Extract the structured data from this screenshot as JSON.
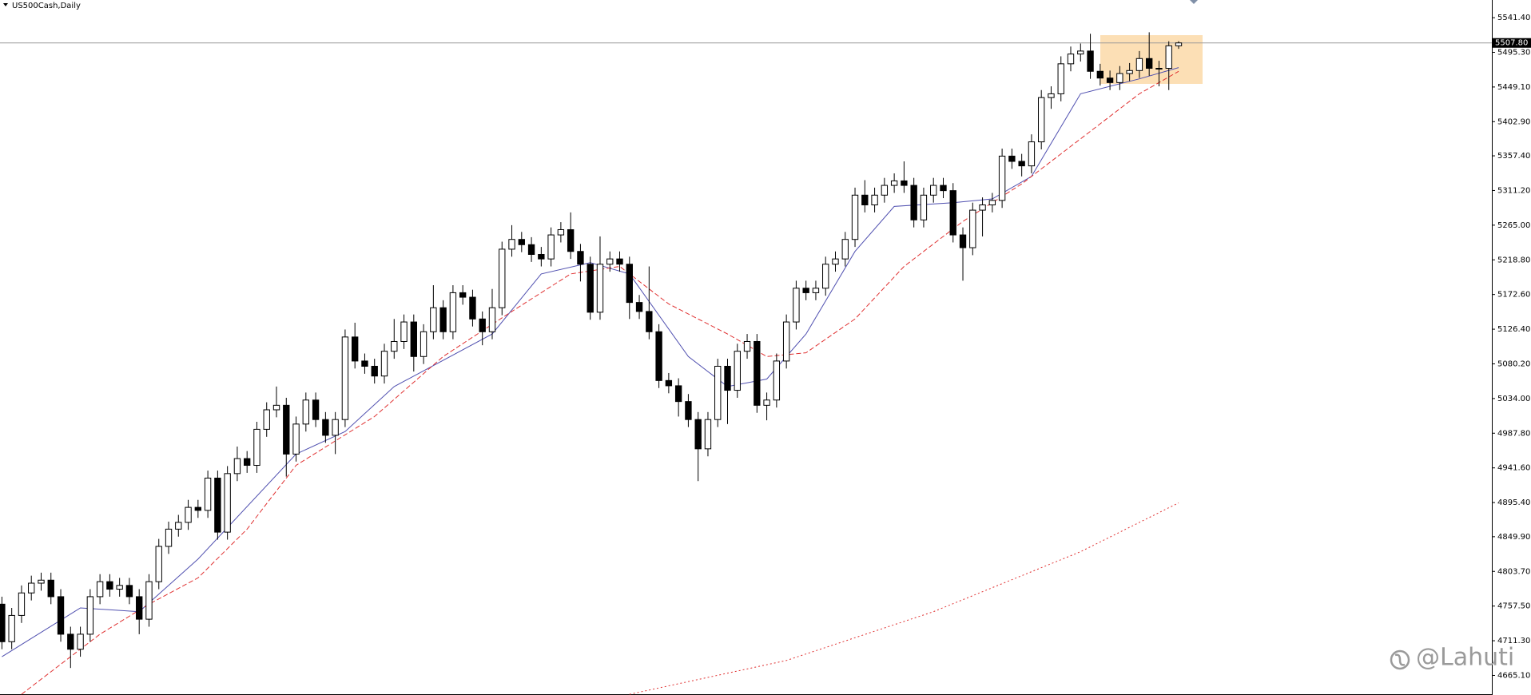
{
  "chart_data": {
    "type": "candlestick",
    "title": "US500Cash,Daily",
    "watermark": "@Lahuti",
    "open": [
      4760,
      4710,
      4745,
      4775,
      4788,
      4792,
      4770,
      4720,
      4700,
      4720,
      4770,
      4790,
      4780,
      4785,
      4770,
      4740,
      4790,
      4837,
      4860,
      4869,
      4889,
      4885,
      4928,
      4856,
      4934,
      4954,
      4945,
      4993,
      5019,
      5025,
      4960,
      5000,
      5032,
      5006,
      4985,
      5006,
      5116,
      5084,
      5077,
      5064,
      5097,
      5110,
      5136,
      5090,
      5123,
      5155,
      5123,
      5175,
      5169,
      5140,
      5123,
      5155,
      5233,
      5246,
      5239,
      5226,
      5220,
      5252,
      5259,
      5230,
      5213,
      5149,
      5213,
      5220,
      5213,
      5162,
      5150,
      5123,
      5058,
      5051,
      5030,
      5006,
      4967,
      5006,
      5077,
      5045,
      5097,
      5110,
      5025,
      5032,
      5084,
      5136,
      5181,
      5175,
      5181,
      5213,
      5220,
      5246,
      5305,
      5292,
      5305,
      5318,
      5324,
      5318,
      5272,
      5305,
      5318,
      5311,
      5252,
      5235,
      5285,
      5292,
      5298,
      5357,
      5350,
      5344,
      5376,
      5435,
      5440,
      5480,
      5493,
      5497,
      5470,
      5461,
      5455,
      5467,
      5471,
      5487,
      5474,
      5474,
      5504
    ],
    "high": [
      4770,
      4755,
      4785,
      4798,
      4802,
      4802,
      4780,
      4730,
      4730,
      4780,
      4800,
      4800,
      4795,
      4795,
      4780,
      4800,
      4847,
      4870,
      4879,
      4899,
      4899,
      4938,
      4938,
      4944,
      4970,
      4964,
      5003,
      5029,
      5050,
      5035,
      5010,
      5042,
      5042,
      5016,
      5016,
      5126,
      5135,
      5094,
      5087,
      5107,
      5140,
      5146,
      5146,
      5133,
      5185,
      5165,
      5185,
      5185,
      5179,
      5150,
      5180,
      5243,
      5265,
      5256,
      5249,
      5236,
      5262,
      5269,
      5282,
      5240,
      5223,
      5250,
      5230,
      5230,
      5223,
      5172,
      5210,
      5133,
      5068,
      5061,
      5040,
      5016,
      5016,
      5087,
      5087,
      5107,
      5120,
      5120,
      5042,
      5094,
      5146,
      5191,
      5191,
      5191,
      5223,
      5230,
      5256,
      5315,
      5325,
      5315,
      5328,
      5334,
      5350,
      5328,
      5315,
      5328,
      5328,
      5321,
      5262,
      5295,
      5302,
      5308,
      5367,
      5367,
      5360,
      5386,
      5445,
      5450,
      5490,
      5503,
      5507,
      5520,
      5480,
      5471,
      5477,
      5481,
      5497,
      5522,
      5484,
      5510,
      5510
    ],
    "low": [
      4700,
      4700,
      4735,
      4765,
      4778,
      4760,
      4710,
      4675,
      4690,
      4710,
      4760,
      4770,
      4770,
      4760,
      4720,
      4730,
      4780,
      4827,
      4850,
      4859,
      4875,
      4875,
      4846,
      4846,
      4924,
      4935,
      4935,
      4983,
      5009,
      4930,
      4950,
      4990,
      4996,
      4975,
      4960,
      4996,
      5074,
      5067,
      5054,
      5054,
      5087,
      5100,
      5070,
      5080,
      5113,
      5113,
      5113,
      5159,
      5130,
      5105,
      5113,
      5145,
      5223,
      5229,
      5216,
      5210,
      5210,
      5242,
      5220,
      5190,
      5139,
      5139,
      5203,
      5203,
      5140,
      5140,
      5113,
      5048,
      5041,
      5010,
      4996,
      4924,
      4957,
      4996,
      5000,
      5035,
      5087,
      5015,
      5005,
      5022,
      5074,
      5126,
      5165,
      5165,
      5171,
      5203,
      5210,
      5236,
      5282,
      5282,
      5295,
      5308,
      5308,
      5262,
      5262,
      5295,
      5301,
      5242,
      5191,
      5225,
      5250,
      5282,
      5288,
      5340,
      5330,
      5334,
      5366,
      5420,
      5430,
      5470,
      5483,
      5460,
      5451,
      5445,
      5445,
      5457,
      5461,
      5464,
      5450,
      5445,
      5500
    ],
    "close": [
      4710,
      4745,
      4775,
      4788,
      4792,
      4770,
      4720,
      4700,
      4720,
      4770,
      4790,
      4780,
      4785,
      4770,
      4740,
      4790,
      4837,
      4860,
      4869,
      4889,
      4885,
      4928,
      4856,
      4934,
      4954,
      4945,
      4993,
      5019,
      5025,
      4960,
      5000,
      5032,
      5006,
      4985,
      5006,
      5116,
      5084,
      5077,
      5064,
      5097,
      5110,
      5136,
      5090,
      5123,
      5155,
      5123,
      5175,
      5169,
      5140,
      5123,
      5155,
      5233,
      5246,
      5239,
      5226,
      5220,
      5252,
      5259,
      5230,
      5213,
      5149,
      5213,
      5220,
      5213,
      5162,
      5150,
      5123,
      5058,
      5051,
      5030,
      5006,
      4967,
      5006,
      5077,
      5045,
      5097,
      5110,
      5025,
      5032,
      5084,
      5136,
      5181,
      5175,
      5181,
      5213,
      5220,
      5246,
      5305,
      5292,
      5305,
      5318,
      5324,
      5318,
      5272,
      5305,
      5318,
      5311,
      5252,
      5235,
      5285,
      5292,
      5298,
      5357,
      5350,
      5344,
      5376,
      5435,
      5440,
      5480,
      5493,
      5497,
      5470,
      5461,
      5455,
      5467,
      5471,
      5487,
      5474,
      5474,
      5504,
      5507.8
    ],
    "lines": [
      {
        "color": "#5050b0",
        "dash": "solid",
        "x": [
          0,
          8,
          14,
          20,
          30,
          35,
          40,
          50,
          55,
          60,
          64,
          70,
          74,
          78,
          82,
          87,
          91,
          97,
          101,
          105,
          110,
          116,
          120
        ],
        "values": [
          4690,
          4755,
          4750,
          4820,
          4960,
          4990,
          5050,
          5120,
          5200,
          5215,
          5200,
          5090,
          5050,
          5060,
          5120,
          5230,
          5290,
          5295,
          5300,
          5330,
          5440,
          5460,
          5475
        ]
      },
      {
        "color": "#e03030",
        "dash": "dashed",
        "x": [
          2,
          10,
          15,
          20,
          25,
          30,
          38,
          45,
          52,
          58,
          63,
          68,
          74,
          78,
          82,
          87,
          92,
          98,
          104,
          110,
          116,
          120
        ],
        "values": [
          4640,
          4720,
          4760,
          4795,
          4860,
          4945,
          5010,
          5090,
          5150,
          5200,
          5210,
          5160,
          5120,
          5090,
          5095,
          5140,
          5210,
          5270,
          5320,
          5380,
          5440,
          5470
        ]
      },
      {
        "color": "#e03030",
        "dash": "dotted",
        "x": [
          64,
          80,
          95,
          110,
          120
        ],
        "values": [
          4640,
          4685,
          4750,
          4830,
          4895
        ]
      }
    ],
    "current_price": {
      "value": 5507.8,
      "label": "5507.80"
    },
    "ylim": [
      4639,
      5565
    ],
    "yticks": [
      {
        "value": 5541.4,
        "label": "5541.40"
      },
      {
        "value": 5495.3,
        "label": "5495.30"
      },
      {
        "value": 5449.1,
        "label": "5449.10"
      },
      {
        "value": 5402.9,
        "label": "5402.90"
      },
      {
        "value": 5357.4,
        "label": "5357.40"
      },
      {
        "value": 5311.2,
        "label": "5311.20"
      },
      {
        "value": 5265,
        "label": "5265.00"
      },
      {
        "value": 5218.8,
        "label": "5218.80"
      },
      {
        "value": 5172.6,
        "label": "5172.60"
      },
      {
        "value": 5126.4,
        "label": "5126.40"
      },
      {
        "value": 5080.2,
        "label": "5080.20"
      },
      {
        "value": 5034,
        "label": "5034.00"
      },
      {
        "value": 4987.8,
        "label": "4987.80"
      },
      {
        "value": 4941.6,
        "label": "4941.60"
      },
      {
        "value": 4895.4,
        "label": "4895.40"
      },
      {
        "value": 4849.9,
        "label": "4849.90"
      },
      {
        "value": 4803.7,
        "label": "4803.70"
      },
      {
        "value": 4757.5,
        "label": "4757.50"
      },
      {
        "value": 4711.3,
        "label": "4711.30"
      },
      {
        "value": 4665.1,
        "label": "4665.10"
      }
    ],
    "grid": false
  }
}
